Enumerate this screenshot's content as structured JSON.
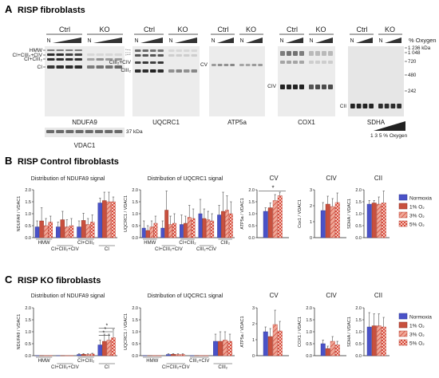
{
  "panelA": {
    "letter": "A",
    "title": "RISP fibroblasts",
    "kda_marker": "37 kDa",
    "oxygen_label": "% Oxygen",
    "oxygen_scale": "1   3   5 % Oxygen",
    "loading_control": "VDAC1",
    "blots": [
      {
        "name": "NDUFA9",
        "ctrl": "Ctrl",
        "ko": "KO",
        "n": "N",
        "labels": [
          "HMW",
          "CI+CIII₂+CIV",
          "CI+CIII₂",
          "CI"
        ]
      },
      {
        "name": "UQCRC1",
        "ctrl": "Ctrl",
        "ko": "KO",
        "n": "N",
        "labels": [
          "CIII₂+CIV",
          "CIII₂"
        ]
      },
      {
        "name": "ATP5a",
        "ctrl": "Ctrl",
        "ko": "KO",
        "n": "N",
        "labels": [
          "CV"
        ]
      },
      {
        "name": "COX1",
        "ctrl": "Ctrl",
        "ko": "KO",
        "n": "N",
        "labels": [
          "CIV"
        ]
      },
      {
        "name": "SDHA",
        "ctrl": "Ctrl",
        "ko": "KO",
        "n": "N",
        "labels": [
          "CII"
        ]
      }
    ],
    "ladder": [
      "1 236 kDa",
      "1 048",
      "720",
      "480",
      "242"
    ]
  },
  "panelB": {
    "letter": "B",
    "title": "RISP Control fibroblasts",
    "legend": [
      "Normoxia",
      "1% O₂",
      "3% O₂",
      "5% O₂"
    ],
    "colors": {
      "normoxia": "#4a52c8",
      "o1": "#c84a3a",
      "o3": "#e87a6a",
      "o5": "#d84a4a"
    }
  },
  "panelC": {
    "letter": "C",
    "title": "RISP KO fibroblasts",
    "legend": [
      "Normoxia",
      "1% O₂",
      "3% O₂",
      "5% O₂"
    ]
  },
  "chart_data": [
    {
      "type": "bar",
      "id": "B-ndufa9",
      "title": "Distribution of NDUFA9 signal",
      "ylabel": "NDUFA9 / VDAC1",
      "ylim": [
        0,
        2.0
      ],
      "yticks": [
        "0.0",
        "0.5",
        "1.0",
        "1.5",
        "2.0"
      ],
      "categories": [
        "HMW",
        "CI+CIII₂+CIV",
        "CI+CIII₂",
        "CI"
      ],
      "series": [
        {
          "name": "Normoxia",
          "values": [
            0.45,
            0.45,
            0.45,
            1.45
          ],
          "errors": [
            0.25,
            0.2,
            0.25,
            0.2
          ]
        },
        {
          "name": "1% O₂",
          "values": [
            0.7,
            0.75,
            0.72,
            1.55
          ],
          "errors": [
            0.55,
            0.35,
            0.3,
            0.35
          ]
        },
        {
          "name": "3% O₂",
          "values": [
            0.5,
            0.45,
            0.55,
            1.5
          ],
          "errors": [
            0.3,
            0.3,
            0.25,
            0.4
          ]
        },
        {
          "name": "5% O₂",
          "values": [
            0.65,
            0.5,
            0.65,
            1.5
          ],
          "errors": [
            0.25,
            0.3,
            0.3,
            0.2
          ]
        }
      ]
    },
    {
      "type": "bar",
      "id": "B-uqcrc1",
      "title": "Distribution of UQCRC1 signal",
      "ylabel": "UQCRC1 / VDAC1",
      "ylim": [
        0,
        2.0
      ],
      "yticks": [
        "0.0",
        "0.5",
        "1.0",
        "1.5",
        "2.0"
      ],
      "categories": [
        "HMW",
        "CI+CIII₂+CIV",
        "CI+CIII₂",
        "CIII₂+CIV",
        "CIII₂"
      ],
      "series": [
        {
          "name": "Normoxia",
          "values": [
            0.4,
            0.4,
            0.55,
            1.0,
            0.95
          ],
          "errors": [
            0.3,
            0.3,
            0.4,
            0.6,
            0.4
          ]
        },
        {
          "name": "1% O₂",
          "values": [
            0.3,
            1.15,
            0.6,
            0.8,
            1.1
          ],
          "errors": [
            0.2,
            0.8,
            0.3,
            0.4,
            0.8
          ]
        },
        {
          "name": "3% O₂",
          "values": [
            0.45,
            0.55,
            0.85,
            0.75,
            1.15
          ],
          "errors": [
            0.25,
            0.35,
            0.5,
            0.35,
            0.6
          ]
        },
        {
          "name": "5% O₂",
          "values": [
            0.6,
            0.6,
            0.8,
            0.7,
            1.0
          ],
          "errors": [
            0.3,
            0.4,
            0.4,
            0.3,
            0.5
          ]
        }
      ]
    },
    {
      "type": "bar",
      "id": "B-cv",
      "title": "CV",
      "ylabel": "ATP5a / VDAC1",
      "ylim": [
        0,
        2.0
      ],
      "yticks": [
        "0.0",
        "0.5",
        "1.0",
        "1.5",
        "2.0"
      ],
      "categories": [
        ""
      ],
      "significance": "*",
      "series": [
        {
          "name": "Normoxia",
          "values": [
            1.1
          ],
          "errors": [
            0.15
          ]
        },
        {
          "name": "1% O₂",
          "values": [
            1.25
          ],
          "errors": [
            0.2
          ]
        },
        {
          "name": "3% O₂",
          "values": [
            1.55
          ],
          "errors": [
            0.25
          ]
        },
        {
          "name": "5% O₂",
          "values": [
            1.75
          ],
          "errors": [
            0.15
          ]
        }
      ]
    },
    {
      "type": "bar",
      "id": "B-civ",
      "title": "CIV",
      "ylabel": "Cox1 / VDAC1",
      "ylim": [
        0,
        3
      ],
      "yticks": [
        "0",
        "1",
        "2",
        "3"
      ],
      "categories": [
        ""
      ],
      "series": [
        {
          "name": "Normoxia",
          "values": [
            1.7
          ],
          "errors": [
            0.5
          ]
        },
        {
          "name": "1% O₂",
          "values": [
            2.1
          ],
          "errors": [
            0.5
          ]
        },
        {
          "name": "3% O₂",
          "values": [
            1.95
          ],
          "errors": [
            0.5
          ]
        },
        {
          "name": "5% O₂",
          "values": [
            2.2
          ],
          "errors": [
            0.6
          ]
        }
      ]
    },
    {
      "type": "bar",
      "id": "B-cii",
      "title": "CII",
      "ylabel": "SDHA / VDAC1",
      "ylim": [
        0,
        2.0
      ],
      "yticks": [
        "0.0",
        "0.5",
        "1.0",
        "1.5",
        "2.0"
      ],
      "categories": [
        ""
      ],
      "series": [
        {
          "name": "Normoxia",
          "values": [
            1.4
          ],
          "errors": [
            0.15
          ]
        },
        {
          "name": "1% O₂",
          "values": [
            1.45
          ],
          "errors": [
            0.1
          ]
        },
        {
          "name": "3% O₂",
          "values": [
            1.4
          ],
          "errors": [
            0.3
          ]
        },
        {
          "name": "5% O₂",
          "values": [
            1.45
          ],
          "errors": [
            0.5
          ]
        }
      ]
    },
    {
      "type": "bar",
      "id": "C-ndufa9",
      "title": "Distribution of NDUFA9 signal",
      "ylabel": "NDUFA9 / VDAC1",
      "ylim": [
        0,
        2.0
      ],
      "yticks": [
        "0.0",
        "0.5",
        "1.0",
        "1.5",
        "2.0"
      ],
      "categories": [
        "HMW",
        "CI+CIII₂+CIV",
        "CI+CIII₂",
        "CI"
      ],
      "significance": "*",
      "series": [
        {
          "name": "Normoxia",
          "values": [
            0.0,
            0.0,
            0.05,
            0.45
          ],
          "errors": [
            0,
            0,
            0.03,
            0.2
          ]
        },
        {
          "name": "1% O₂",
          "values": [
            0.0,
            0.0,
            0.06,
            0.6
          ],
          "errors": [
            0,
            0,
            0.03,
            0.3
          ]
        },
        {
          "name": "3% O₂",
          "values": [
            0.0,
            0.0,
            0.05,
            0.65
          ],
          "errors": [
            0,
            0,
            0.03,
            0.25
          ]
        },
        {
          "name": "5% O₂",
          "values": [
            0.0,
            0.0,
            0.07,
            0.75
          ],
          "errors": [
            0,
            0,
            0.03,
            0.35
          ]
        }
      ]
    },
    {
      "type": "bar",
      "id": "C-uqcrc1",
      "title": "Distribution of UQCRC1 signal",
      "ylabel": "UQCRC1 / VDAC1",
      "ylim": [
        0,
        2.0
      ],
      "yticks": [
        "0.0",
        "0.5",
        "1.0",
        "1.5",
        "2.0"
      ],
      "categories": [
        "HMW",
        "CI+CIII₂+CIV",
        "CIII₂+CIV",
        "CIII₂"
      ],
      "series": [
        {
          "name": "Normoxia",
          "values": [
            0.0,
            0.05,
            0.0,
            0.6
          ],
          "errors": [
            0,
            0.03,
            0,
            0.3
          ]
        },
        {
          "name": "1% O₂",
          "values": [
            0.0,
            0.06,
            0.0,
            0.6
          ],
          "errors": [
            0,
            0.03,
            0,
            0.4
          ]
        },
        {
          "name": "3% O₂",
          "values": [
            0.0,
            0.05,
            0.0,
            0.65
          ],
          "errors": [
            0,
            0.03,
            0,
            0.35
          ]
        },
        {
          "name": "5% O₂",
          "values": [
            0.0,
            0.05,
            0.0,
            0.6
          ],
          "errors": [
            0,
            0.03,
            0,
            0.3
          ]
        }
      ]
    },
    {
      "type": "bar",
      "id": "C-cv",
      "title": "CV",
      "ylabel": "ATP5a / VDAC1",
      "ylim": [
        0,
        3
      ],
      "yticks": [
        "0",
        "1",
        "2",
        "3"
      ],
      "categories": [
        ""
      ],
      "series": [
        {
          "name": "Normoxia",
          "values": [
            1.5
          ],
          "errors": [
            0.3
          ]
        },
        {
          "name": "1% O₂",
          "values": [
            1.2
          ],
          "errors": [
            0.5
          ]
        },
        {
          "name": "3% O₂",
          "values": [
            1.95
          ],
          "errors": [
            0.9
          ]
        },
        {
          "name": "5% O₂",
          "values": [
            1.55
          ],
          "errors": [
            0.6
          ]
        }
      ]
    },
    {
      "type": "bar",
      "id": "C-civ",
      "title": "CIV",
      "ylabel": "COX1 / VDAC1",
      "ylim": [
        0,
        2.0
      ],
      "yticks": [
        "0.0",
        "0.5",
        "1.0",
        "1.5",
        "2.0"
      ],
      "categories": [
        ""
      ],
      "series": [
        {
          "name": "Normoxia",
          "values": [
            0.5
          ],
          "errors": [
            0.15
          ]
        },
        {
          "name": "1% O₂",
          "values": [
            0.3
          ],
          "errors": [
            0.1
          ]
        },
        {
          "name": "3% O₂",
          "values": [
            0.6
          ],
          "errors": [
            0.2
          ]
        },
        {
          "name": "5% O₂",
          "values": [
            0.45
          ],
          "errors": [
            0.15
          ]
        }
      ]
    },
    {
      "type": "bar",
      "id": "C-cii",
      "title": "CII",
      "ylabel": "SDHA / VDAC1",
      "ylim": [
        0,
        2.0
      ],
      "yticks": [
        "0.0",
        "0.5",
        "1.0",
        "1.5",
        "2.0"
      ],
      "categories": [
        ""
      ],
      "series": [
        {
          "name": "Normoxia",
          "values": [
            1.2
          ],
          "errors": [
            0.6
          ]
        },
        {
          "name": "1% O₂",
          "values": [
            1.25
          ],
          "errors": [
            0.5
          ]
        },
        {
          "name": "3% O₂",
          "values": [
            1.25
          ],
          "errors": [
            0.5
          ]
        },
        {
          "name": "5% O₂",
          "values": [
            1.2
          ],
          "errors": [
            0.4
          ]
        }
      ]
    }
  ]
}
